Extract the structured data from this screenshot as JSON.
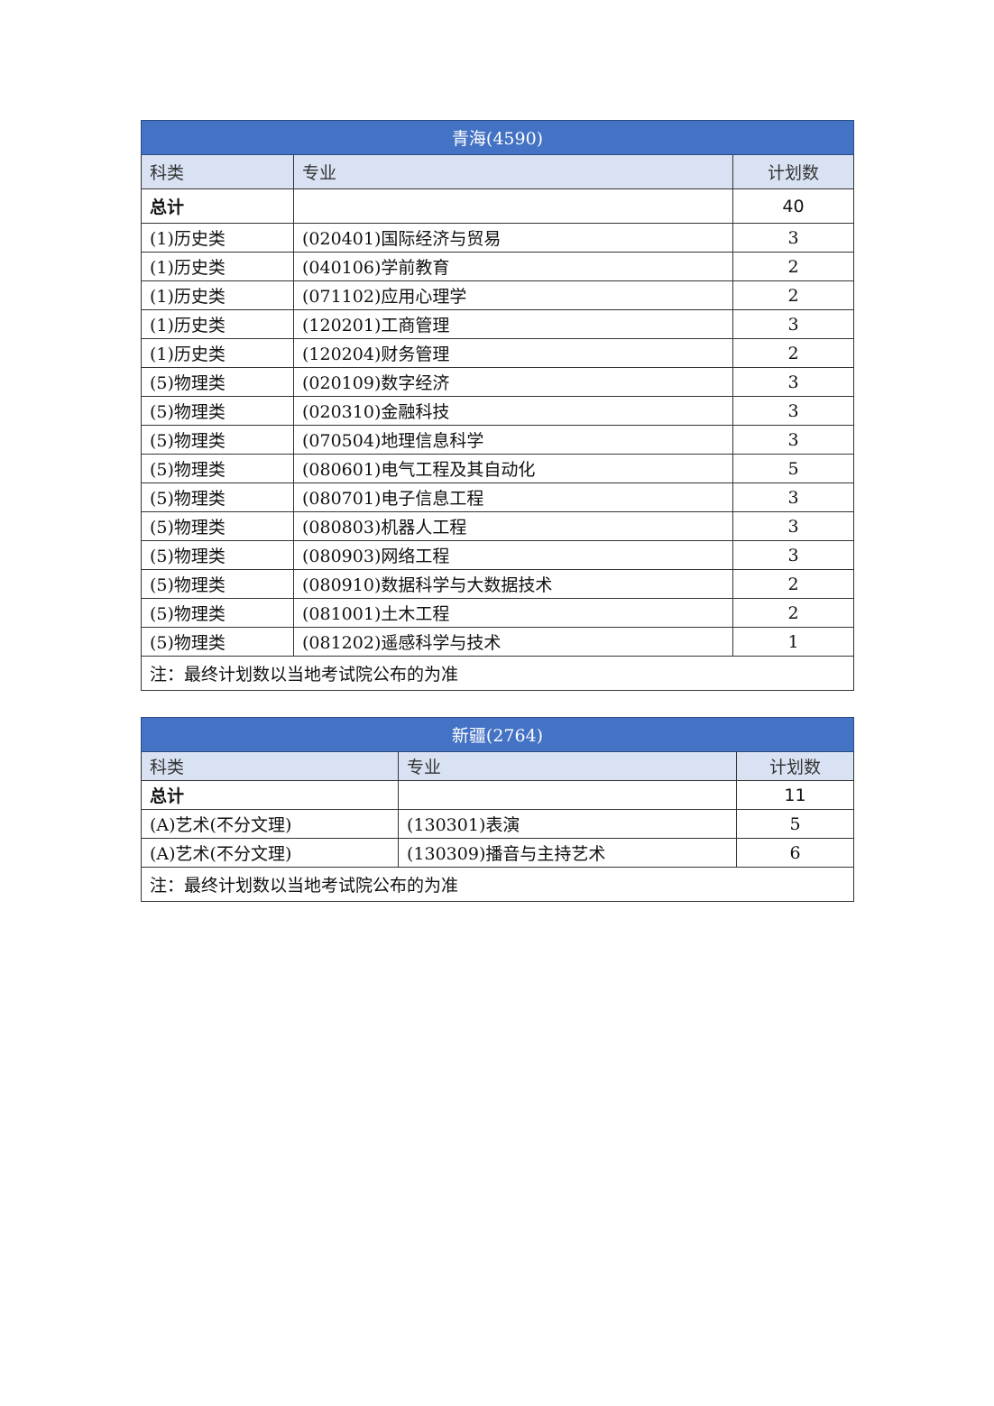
{
  "colors": {
    "header_bg": "#4472C4",
    "column_header_bg": "#D9E2F3"
  },
  "tables": [
    {
      "title": "青海(4590)",
      "headers": [
        "科类",
        "专业",
        "计划数"
      ],
      "total": {
        "label": "总计",
        "value": "40"
      },
      "rows": [
        [
          "(1)历史类",
          "(020401)国际经济与贸易",
          "3"
        ],
        [
          "(1)历史类",
          "(040106)学前教育",
          "2"
        ],
        [
          "(1)历史类",
          "(071102)应用心理学",
          "2"
        ],
        [
          "(1)历史类",
          "(120201)工商管理",
          "3"
        ],
        [
          "(1)历史类",
          "(120204)财务管理",
          "2"
        ],
        [
          "(5)物理类",
          "(020109)数字经济",
          "3"
        ],
        [
          "(5)物理类",
          "(020310)金融科技",
          "3"
        ],
        [
          "(5)物理类",
          "(070504)地理信息科学",
          "3"
        ],
        [
          "(5)物理类",
          "(080601)电气工程及其自动化",
          "5"
        ],
        [
          "(5)物理类",
          "(080701)电子信息工程",
          "3"
        ],
        [
          "(5)物理类",
          "(080803)机器人工程",
          "3"
        ],
        [
          "(5)物理类",
          "(080903)网络工程",
          "3"
        ],
        [
          "(5)物理类",
          "(080910)数据科学与大数据技术",
          "2"
        ],
        [
          "(5)物理类",
          "(081001)土木工程",
          "2"
        ],
        [
          "(5)物理类",
          "(081202)遥感科学与技术",
          "1"
        ]
      ],
      "note": "注：最终计划数以当地考试院公布的为准"
    },
    {
      "title": "新疆(2764)",
      "headers": [
        "科类",
        "专业",
        "计划数"
      ],
      "total": {
        "label": "总计",
        "value": "11"
      },
      "rows": [
        [
          "(A)艺术(不分文理)",
          "(130301)表演",
          "5"
        ],
        [
          "(A)艺术(不分文理)",
          "(130309)播音与主持艺术",
          "6"
        ]
      ],
      "note": "注：最终计划数以当地考试院公布的为准"
    }
  ]
}
